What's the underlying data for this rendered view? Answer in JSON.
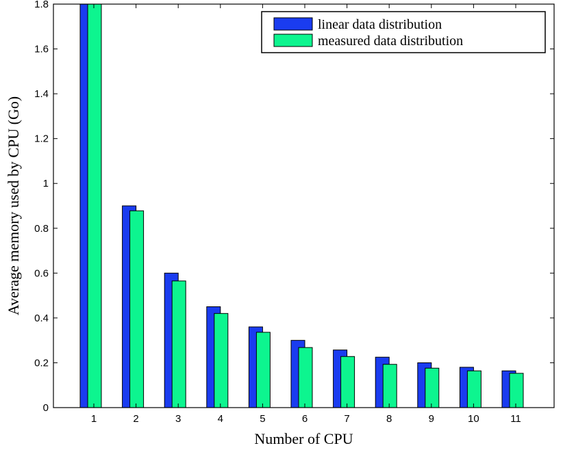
{
  "chart_data": {
    "type": "bar",
    "title": "",
    "xlabel": "Number of CPU",
    "ylabel": "Average memory used by CPU (Go)",
    "categories": [
      "1",
      "2",
      "3",
      "4",
      "5",
      "6",
      "7",
      "8",
      "9",
      "10",
      "11"
    ],
    "series": [
      {
        "name": "linear data distribution",
        "color": "#1a3cf0",
        "values": [
          1.8,
          0.9,
          0.6,
          0.45,
          0.36,
          0.3,
          0.257,
          0.225,
          0.2,
          0.18,
          0.164
        ]
      },
      {
        "name": "measured data distribution",
        "color": "#0df58f",
        "values": [
          1.8,
          0.878,
          0.565,
          0.42,
          0.336,
          0.268,
          0.228,
          0.193,
          0.176,
          0.164,
          0.153
        ]
      }
    ],
    "ylim": [
      0,
      1.8
    ],
    "yticks": [
      "0",
      "0.2",
      "0.4",
      "0.6",
      "0.8",
      "1",
      "1.2",
      "1.4",
      "1.6",
      "1.8"
    ],
    "legend_position": "top-right",
    "grid": false
  }
}
